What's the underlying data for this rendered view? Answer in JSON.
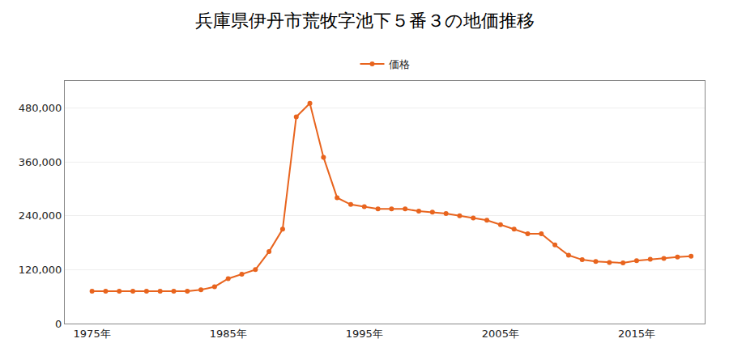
{
  "chart_data": {
    "type": "line",
    "title": "兵庫県伊丹市荒牧字池下５番３の地価推移",
    "x": [
      1975,
      1976,
      1977,
      1978,
      1979,
      1980,
      1981,
      1982,
      1983,
      1984,
      1985,
      1986,
      1987,
      1988,
      1989,
      1990,
      1991,
      1992,
      1993,
      1994,
      1995,
      1996,
      1997,
      1998,
      1999,
      2000,
      2001,
      2002,
      2003,
      2004,
      2005,
      2006,
      2007,
      2008,
      2009,
      2010,
      2011,
      2012,
      2013,
      2014,
      2015,
      2016,
      2017,
      2018,
      2019
    ],
    "series": [
      {
        "name": "価格",
        "color": "#e8641e",
        "marker": "circle",
        "line_style": "solid",
        "values": [
          72000,
          72000,
          72000,
          72000,
          72000,
          72000,
          72000,
          72000,
          75000,
          82000,
          100000,
          110000,
          120000,
          160000,
          210000,
          460000,
          490000,
          370000,
          280000,
          265000,
          260000,
          255000,
          255000,
          255000,
          250000,
          248000,
          245000,
          240000,
          235000,
          230000,
          220000,
          210000,
          200000,
          200000,
          175000,
          152000,
          142000,
          138000,
          136000,
          135000,
          140000,
          143000,
          145000,
          148000,
          150000
        ]
      }
    ],
    "xlim": [
      1973,
      2020
    ],
    "xticks": [
      {
        "value": 1975,
        "label": "1975年"
      },
      {
        "value": 1985,
        "label": "1985年"
      },
      {
        "value": 1995,
        "label": "1995年"
      },
      {
        "value": 2005,
        "label": "2005年"
      },
      {
        "value": 2015,
        "label": "2015年"
      }
    ],
    "ylim": [
      0,
      540000
    ],
    "yticks": [
      0,
      {
        "value": 120000,
        "label": "120,000"
      },
      {
        "value": 240000,
        "label": "240,000"
      },
      {
        "value": 360000,
        "label": "360,000"
      },
      {
        "value": 480000,
        "label": "480,000"
      }
    ],
    "grid": "y",
    "legend": "top"
  }
}
